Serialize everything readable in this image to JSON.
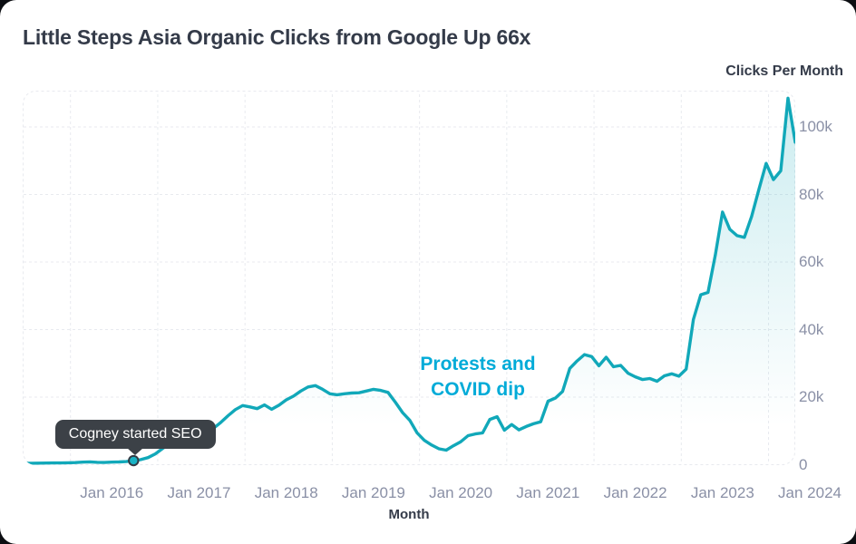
{
  "title": "Little Steps Asia Organic Clicks from Google Up 66x",
  "chart_data": {
    "type": "area",
    "title": "Little Steps Asia Organic Clicks from Google Up 66x",
    "x_label": "Month",
    "y_label": "Clicks Per Month",
    "x_ticks": [
      "Jan 2016",
      "Jan 2017",
      "Jan 2018",
      "Jan 2019",
      "Jan 2020",
      "Jan 2021",
      "Jan 2022",
      "Jan 2023",
      "Jan 2024"
    ],
    "y_tick_labels": [
      "0",
      "20k",
      "40k",
      "60k",
      "80k",
      "100k"
    ],
    "y_tick_values": [
      0,
      20000,
      40000,
      60000,
      80000,
      100000
    ],
    "y_visible_max": 110600,
    "grid": "dashed",
    "legend": "none",
    "series": [
      {
        "name": "Organic clicks from Google",
        "start_month": "2015-01",
        "frequency": "monthly",
        "values": [
          400,
          420,
          450,
          480,
          500,
          520,
          560,
          620,
          750,
          820,
          700,
          650,
          750,
          800,
          900,
          1200,
          1500,
          2100,
          3200,
          4800,
          6200,
          7500,
          8700,
          9800,
          10500,
          10600,
          10800,
          12500,
          14500,
          16300,
          17500,
          17100,
          16600,
          17700,
          16400,
          17600,
          19200,
          20300,
          21800,
          23000,
          23400,
          22300,
          21000,
          20700,
          21000,
          21200,
          21300,
          21800,
          22300,
          22000,
          21400,
          18500,
          15400,
          13100,
          9400,
          7200,
          5800,
          4700,
          4300,
          5600,
          6800,
          8600,
          9100,
          9400,
          13400,
          14200,
          10200,
          11900,
          10300,
          11300,
          12100,
          12700,
          18800,
          19700,
          21700,
          28500,
          30700,
          32600,
          32000,
          29300,
          31800,
          29000,
          29400,
          27100,
          26000,
          25200,
          25500,
          24700,
          26300,
          26900,
          26200,
          28300,
          43000,
          50300,
          51000,
          62000,
          74800,
          69700,
          67800,
          67300,
          73500,
          81500,
          89200,
          84400,
          87000,
          108500,
          95500
        ]
      }
    ],
    "annotations": {
      "callout": {
        "text": "Cogney started SEO",
        "month": "2016-04",
        "value": 1200
      },
      "note": {
        "text": "Protests and COVID dip",
        "lines": [
          "Protests and",
          "COVID dip"
        ]
      }
    },
    "colors": {
      "line": "#11a8b9",
      "fill_top": "rgba(17,168,185,0.22)",
      "fill_bottom": "rgba(17,168,185,0)",
      "note_text": "#00abd8",
      "tooltip_bg": "#3c4147",
      "tooltip_text": "#ffffff",
      "grid": "#e8eaef",
      "tick_text": "#8a90a6",
      "axis_title_text": "#343b49",
      "marker_fill": "#19b2c4",
      "marker_stroke": "#333b45"
    }
  }
}
